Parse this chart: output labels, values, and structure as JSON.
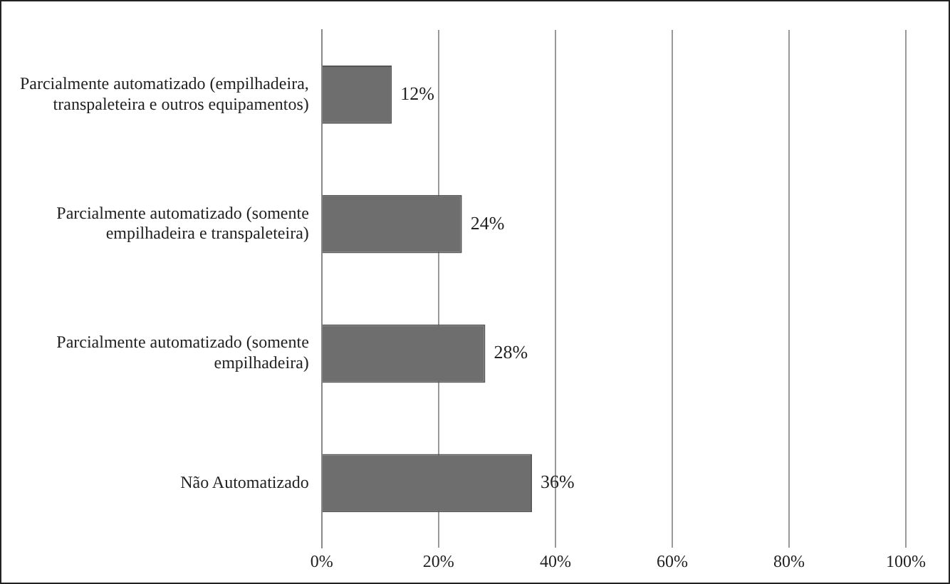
{
  "chart_data": {
    "type": "bar",
    "orientation": "horizontal",
    "categories": [
      "Parcialmente automatizado (empilhadeira, transpaleteira e outros equipamentos)",
      "Parcialmente automatizado (somente empilhadeira e transpaleteira)",
      "Parcialmente automatizado (somente empilhadeira)",
      "Não Automatizado"
    ],
    "values": [
      12,
      24,
      28,
      36
    ],
    "value_labels": [
      "12%",
      "24%",
      "28%",
      "36%"
    ],
    "color": "#6e6e6e",
    "xlim": [
      0,
      100
    ],
    "xticks": [
      {
        "value": 0,
        "label": "0%"
      },
      {
        "value": 20,
        "label": "20%"
      },
      {
        "value": 40,
        "label": "40%"
      },
      {
        "value": 60,
        "label": "60%"
      },
      {
        "value": 80,
        "label": "80%"
      },
      {
        "value": 100,
        "label": "100%"
      }
    ],
    "grid": "x",
    "legend": false
  }
}
